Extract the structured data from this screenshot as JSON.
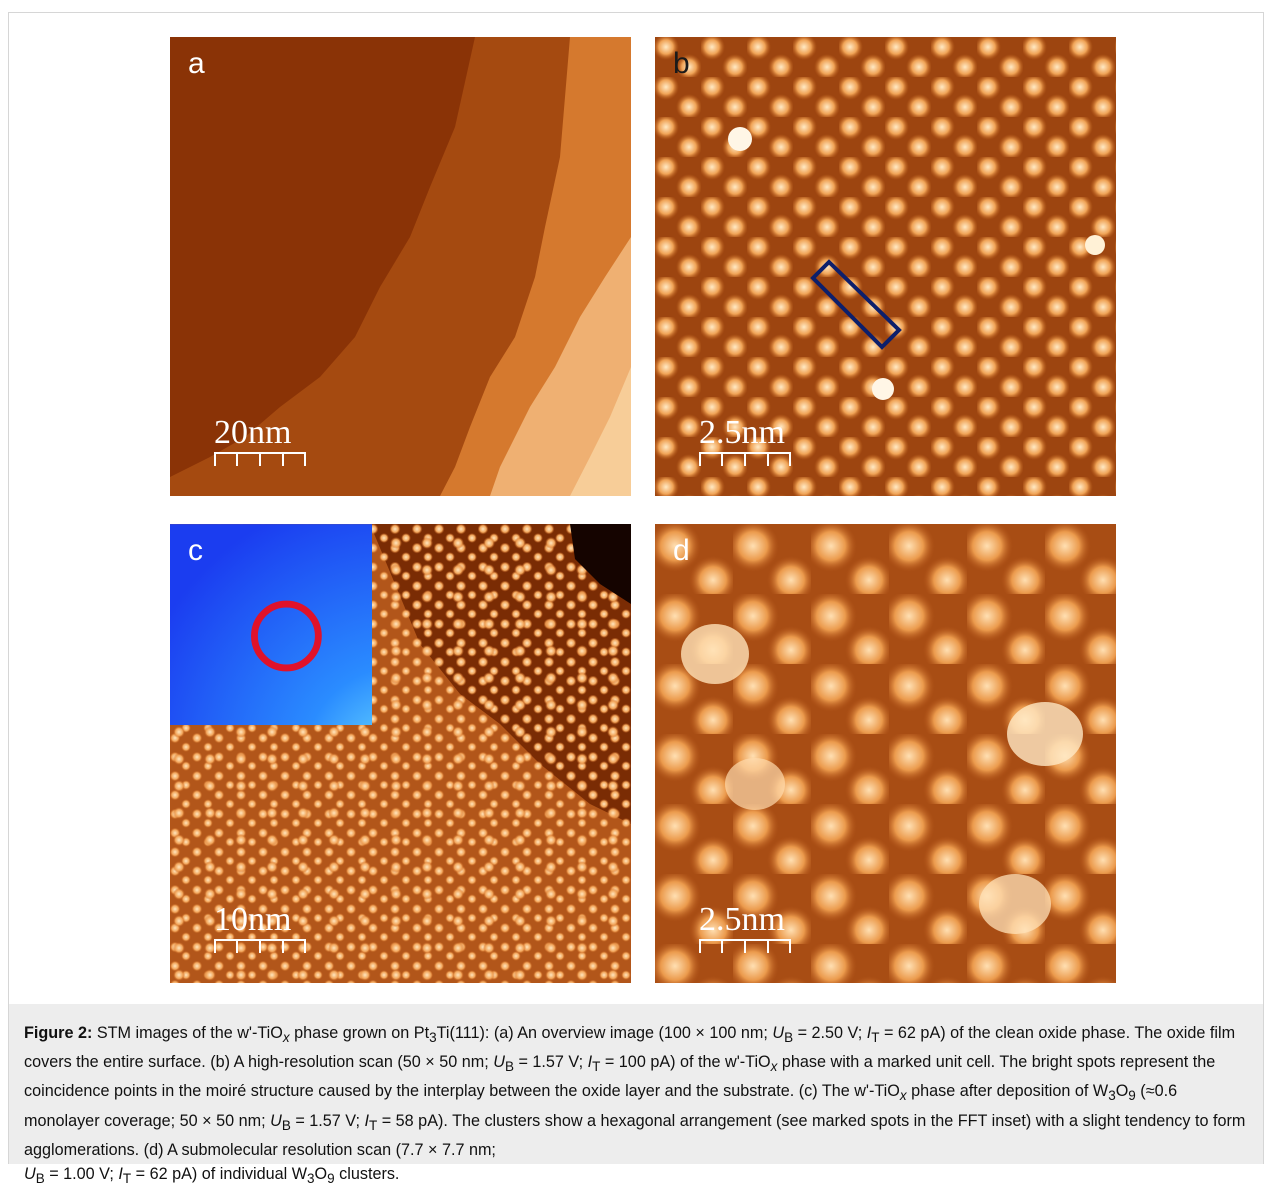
{
  "figure": {
    "panels": [
      {
        "id": "a",
        "label": "a",
        "scale_label": "20nm"
      },
      {
        "id": "b",
        "label": "b",
        "scale_label": "2.5nm"
      },
      {
        "id": "c",
        "label": "c",
        "scale_label": "10nm"
      },
      {
        "id": "d",
        "label": "d",
        "scale_label": "2.5nm"
      }
    ],
    "colors": {
      "stm_dark": "#7a2a00",
      "stm_mid": "#c8651a",
      "stm_light": "#f6c78c",
      "stm_bright": "#fff3dc",
      "unit_cell": "#0d1f6b",
      "fft_blue": "#1b3df0",
      "fft_marker": "#e0122a"
    },
    "caption": {
      "label": "Figure 2:",
      "p1": " STM images of the w'-TiO",
      "p1_sub": "x",
      "p2": " phase grown on Pt",
      "p2_sub": "3",
      "p3": "Ti(111): (a) An overview image (100 × 100 nm; ",
      "ub": "U",
      "ub_sub": "B",
      "p4": " = 2.50 V; ",
      "it": "I",
      "it_sub": "T",
      "p5": " = 62 pA) of the clean oxide phase. The oxide film covers the entire surface. (b) A high-resolution scan (50 × 50 nm; ",
      "p6": " = 1.57 V; ",
      "p7": " = 100 pA) of the w'-TiO",
      "p8": " phase with a marked unit cell. The bright spots represent the coincidence points in the moiré structure caused by the interplay between the oxide layer and the substrate. (c) The w'-TiO",
      "p9": " phase after deposition of W",
      "w_sub": "3",
      "o": "O",
      "o_sub": "9",
      "p10": " (≈0.6 monolayer coverage; 50 × 50 nm; ",
      "p11": " = 1.57 V; ",
      "p12": " = 58 pA). The clusters show a hexagonal arrangement (see marked spots in the FFT inset) with a slight tendency to form agglomerations. (d) A submolecular resolution scan (7.7 × 7.7 nm; ",
      "p13": " = 1.00 V; ",
      "p14": " = 62 pA) of individual W",
      "p15": " clusters."
    }
  }
}
